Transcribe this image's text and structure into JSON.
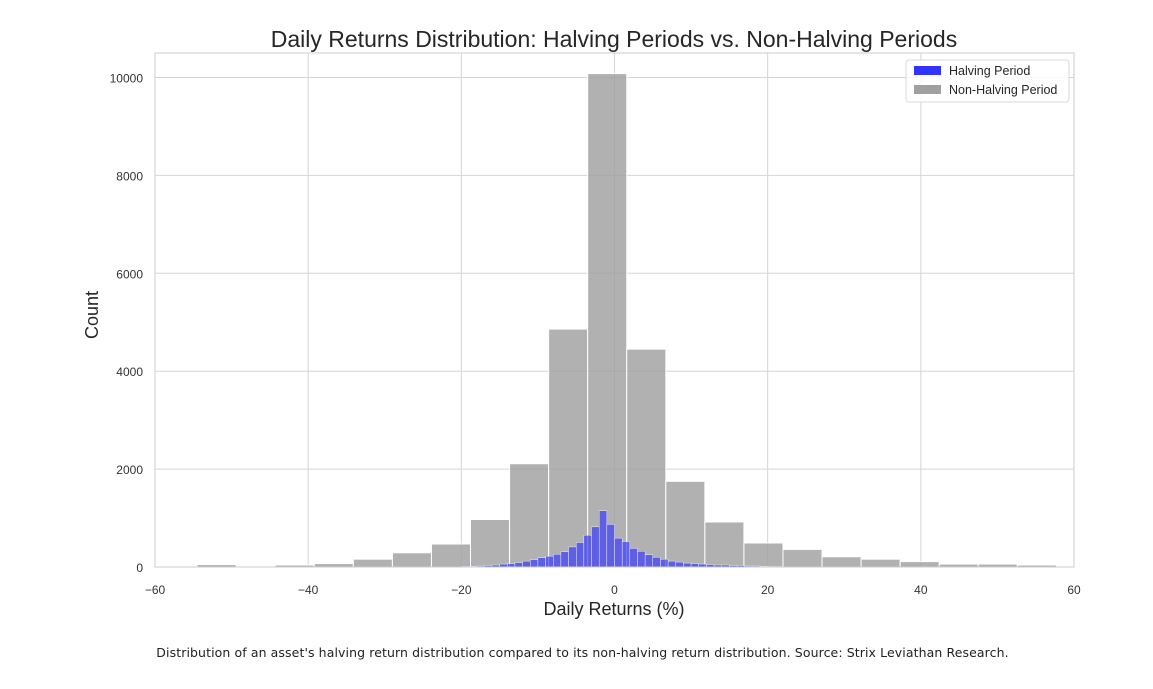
{
  "chart_data": {
    "type": "bar",
    "title": "Daily Returns Distribution: Halving Periods vs. Non-Halving Periods",
    "xlabel": "Daily Returns (%)",
    "ylabel": "Count",
    "xlim": [
      -60,
      60
    ],
    "ylim": [
      0,
      10500
    ],
    "x_ticks": [
      -60,
      -40,
      -20,
      0,
      20,
      40,
      60
    ],
    "x_tick_labels": [
      "−60",
      "−40",
      "−20",
      "0",
      "20",
      "40",
      "60"
    ],
    "y_ticks": [
      0,
      2000,
      4000,
      6000,
      8000,
      10000
    ],
    "y_tick_labels": [
      "0",
      "2000",
      "4000",
      "6000",
      "8000",
      "10000"
    ],
    "grid": true,
    "legend_position": "top-right",
    "series": [
      {
        "name": "Non-Halving Period",
        "color": "#a0a0a0",
        "bin_edges": [
          -59.6,
          -54.5,
          -49.4,
          -44.3,
          -39.2,
          -34.1,
          -29.0,
          -23.9,
          -18.8,
          -13.7,
          -8.6,
          -3.5,
          1.6,
          6.7,
          11.8,
          16.9,
          22.0,
          27.1,
          32.2,
          37.3,
          42.4,
          47.5,
          52.6,
          57.7
        ],
        "values": [
          20,
          50,
          20,
          40,
          70,
          160,
          290,
          470,
          970,
          2110,
          4860,
          10080,
          4450,
          1750,
          920,
          490,
          360,
          210,
          160,
          110,
          60,
          60,
          40
        ]
      },
      {
        "name": "Halving Period",
        "color": "#3333ff",
        "bin_edges": [
          -20.0,
          -19.0,
          -18.0,
          -17.0,
          -16.0,
          -15.0,
          -14.0,
          -13.0,
          -12.0,
          -11.0,
          -10.0,
          -9.0,
          -8.0,
          -7.0,
          -6.0,
          -5.0,
          -4.0,
          -3.0,
          -2.0,
          -1.0,
          0.0,
          1.0,
          2.0,
          3.0,
          4.0,
          5.0,
          6.0,
          7.0,
          8.0,
          9.0,
          10.0,
          11.0,
          12.0,
          13.0,
          14.0,
          15.0,
          16.0,
          17.0,
          18.0,
          19.0,
          20.0,
          21.0,
          22.0
        ],
        "values": [
          10,
          15,
          20,
          30,
          40,
          60,
          70,
          90,
          120,
          150,
          190,
          220,
          260,
          310,
          410,
          500,
          650,
          820,
          1150,
          870,
          590,
          520,
          380,
          320,
          250,
          200,
          160,
          120,
          100,
          80,
          70,
          60,
          50,
          40,
          40,
          30,
          30,
          20,
          20,
          15,
          10,
          10
        ]
      }
    ]
  },
  "caption": "Distribution of an asset's halving return distribution compared to its non-halving return distribution. Source: Strix Leviathan Research."
}
